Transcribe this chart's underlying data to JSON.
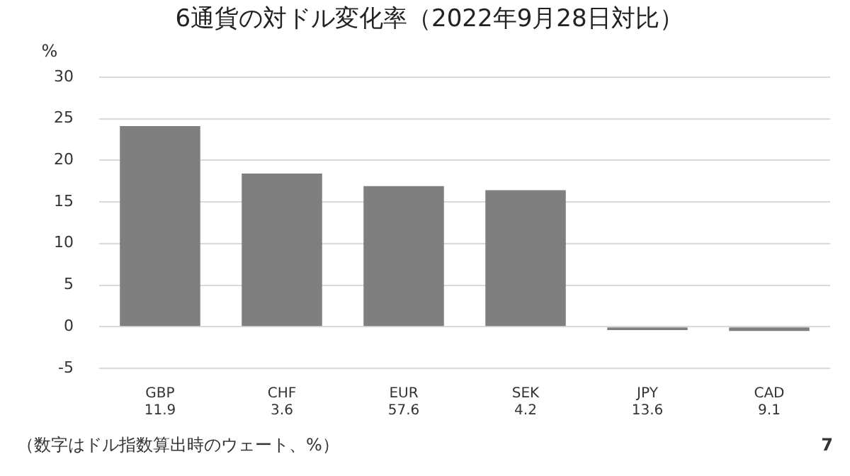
{
  "chart_data": {
    "type": "bar",
    "title": "6通貨の対ドル変化率（2022年9月28日対比）",
    "ylabel": "%",
    "categories": [
      "GBP\n11.9",
      "CHF\n3.6",
      "EUR\n57.6",
      "SEK\n4.2",
      "JPY\n13.6",
      "CAD\n9.1"
    ],
    "values": [
      24.1,
      18.4,
      16.9,
      16.4,
      -0.4,
      -0.5
    ],
    "color": "#7f7f7f",
    "ylim": [
      -5,
      30
    ],
    "yticks": [
      -5,
      0,
      5,
      10,
      15,
      20,
      25,
      30
    ],
    "grid": "y",
    "annotations": [
      "（数字はドル指数算出時のウェート、%）",
      "7"
    ]
  }
}
